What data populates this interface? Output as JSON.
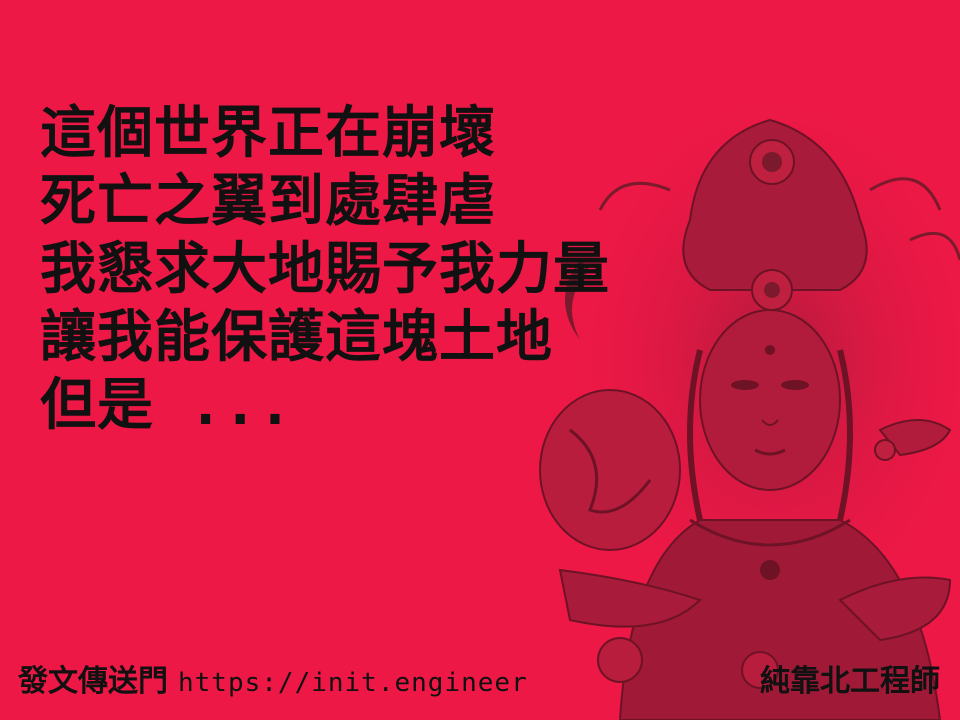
{
  "poem": {
    "lines": [
      "這個世界正在崩壞",
      "死亡之翼到處肆虐",
      "我懇求大地賜予我力量",
      "讓我能保護這塊土地",
      "但是 ..."
    ]
  },
  "footer": {
    "portal_label": "發文傳送門",
    "url": "https://init.engineer",
    "brand": "純靠北工程師"
  },
  "colors": {
    "background": "#ee1846",
    "text": "#111111",
    "figure_shade": "#7a1a2c"
  }
}
